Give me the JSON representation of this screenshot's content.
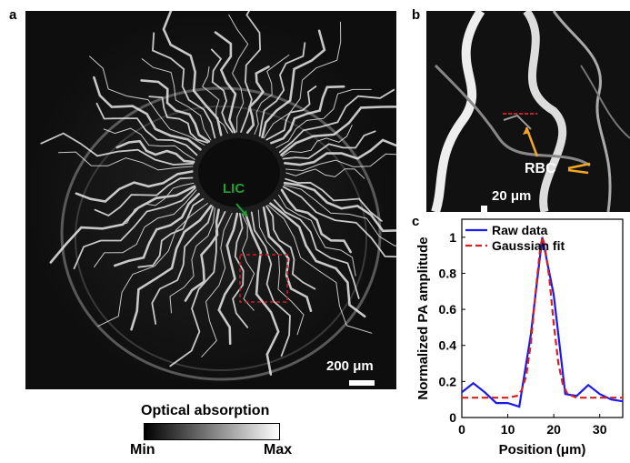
{
  "panels": {
    "a": {
      "letter": "a",
      "label_lic": "LIC",
      "scale_label": "200 μm"
    },
    "b": {
      "letter": "b",
      "label_rbc": "RBC",
      "scale_label": "20 μm"
    },
    "c": {
      "letter": "c"
    }
  },
  "colorbar": {
    "title": "Optical absorption",
    "min_label": "Min",
    "max_label": "Max"
  },
  "colors": {
    "raw": "#1a1aee",
    "fit": "#d42020",
    "lic": "#1fa030",
    "rbc_arrow": "#f5a623",
    "roi": "#c8202a"
  },
  "chart_data": {
    "type": "line",
    "xlabel": "Position (μm)",
    "ylabel": "Normalized PA amplitude",
    "xlim": [
      0,
      35
    ],
    "ylim": [
      0,
      1.1
    ],
    "xticks": [
      0,
      10,
      20,
      30
    ],
    "yticks": [
      0,
      0.2,
      0.4,
      0.6,
      0.8,
      1
    ],
    "legend_position": "top-left",
    "series": [
      {
        "name": "Raw data",
        "style": "solid",
        "x": [
          0,
          2.5,
          5,
          7.5,
          10,
          12.5,
          15,
          17.5,
          20,
          22.5,
          25,
          27.5,
          30,
          32.5,
          35
        ],
        "y": [
          0.14,
          0.19,
          0.14,
          0.08,
          0.08,
          0.06,
          0.46,
          1.0,
          0.68,
          0.13,
          0.12,
          0.18,
          0.13,
          0.1,
          0.09
        ]
      },
      {
        "name": "Gaussian fit",
        "style": "dashed",
        "x": [
          0,
          5,
          10,
          12,
          13,
          14,
          15,
          16,
          17,
          17.5,
          18,
          19,
          20,
          21,
          22,
          23,
          25,
          30,
          35
        ],
        "y": [
          0.11,
          0.11,
          0.11,
          0.12,
          0.15,
          0.23,
          0.41,
          0.68,
          0.93,
          1.0,
          0.96,
          0.78,
          0.52,
          0.3,
          0.18,
          0.13,
          0.11,
          0.11,
          0.11
        ]
      }
    ]
  }
}
